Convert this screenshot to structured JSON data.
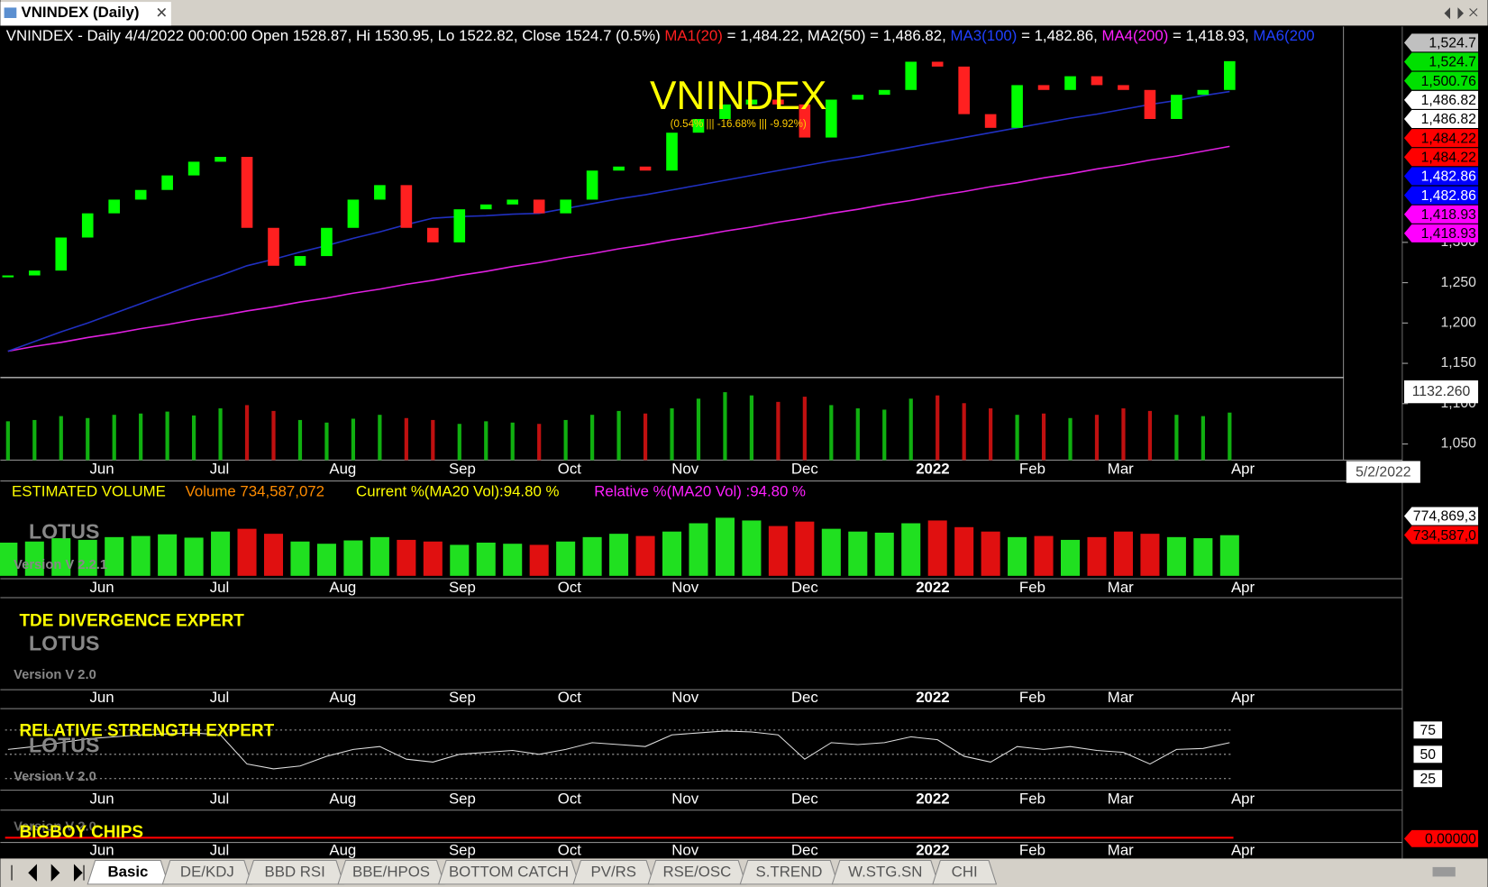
{
  "window": {
    "tab_title": "VNINDEX (Daily)"
  },
  "header": {
    "segments": [
      {
        "text": "VNINDEX - Daily 4/4/2022 00:00:00 Open 1528.87, Hi 1530.95, Lo 1522.82, Close 1524.7 (0.5%) ",
        "color": "#ffffff"
      },
      {
        "text": "MA1(20)",
        "color": "#ff2020"
      },
      {
        "text": " = 1,484.22, MA2(50) = 1,486.82, ",
        "color": "#ffffff"
      },
      {
        "text": "MA3(100)",
        "color": "#2040ff"
      },
      {
        "text": " = 1,482.86, ",
        "color": "#ffffff"
      },
      {
        "text": "MA4(200)",
        "color": "#ff20ff"
      },
      {
        "text": " = 1,418.93, ",
        "color": "#ffffff"
      },
      {
        "text": "MA6(200",
        "color": "#2040ff"
      }
    ]
  },
  "watermark": {
    "title": "VNINDEX",
    "subtitle": "(0.54% ||| -16.68% ||| -9.92%)"
  },
  "price_panel": {
    "ylim": [
      1030,
      1567.6
    ],
    "yticks": [
      {
        "value": 1050,
        "label": "1,050"
      },
      {
        "value": 1100,
        "label": "1,100"
      },
      {
        "value": 1150,
        "label": "1,150"
      },
      {
        "value": 1200,
        "label": "1,200"
      },
      {
        "value": 1250,
        "label": "1,250"
      },
      {
        "value": 1300,
        "label": "1,300"
      }
    ],
    "closes": [
      1259,
      1265,
      1306,
      1336,
      1353,
      1365,
      1383,
      1400,
      1406,
      1318,
      1271,
      1283,
      1318,
      1353,
      1371,
      1318,
      1300,
      1341,
      1347,
      1353,
      1336,
      1353,
      1389,
      1394,
      1389,
      1436,
      1453,
      1471,
      1477,
      1471,
      1430,
      1477,
      1483,
      1489,
      1524,
      1518,
      1459,
      1442,
      1495,
      1489,
      1506,
      1495,
      1489,
      1453,
      1483,
      1489,
      1524.7
    ],
    "ma100": {
      "color": "#2030c0",
      "values": [
        1165,
        1177,
        1189,
        1200,
        1212,
        1224,
        1236,
        1248,
        1259,
        1271,
        1279,
        1288,
        1296,
        1305,
        1313,
        1322,
        1330,
        1332,
        1333,
        1335,
        1336,
        1342,
        1348,
        1354,
        1359,
        1365,
        1371,
        1377,
        1383,
        1389,
        1395,
        1401,
        1406,
        1412,
        1418,
        1424,
        1430,
        1436,
        1442,
        1448,
        1454,
        1459,
        1465,
        1471,
        1476,
        1482,
        1487
      ]
    },
    "ma200": {
      "color": "#e020e0",
      "values": [
        1165,
        1171,
        1176,
        1182,
        1187,
        1193,
        1198,
        1204,
        1209,
        1215,
        1220,
        1226,
        1231,
        1237,
        1242,
        1248,
        1253,
        1259,
        1264,
        1270,
        1275,
        1281,
        1286,
        1292,
        1297,
        1303,
        1308,
        1314,
        1319,
        1325,
        1330,
        1336,
        1341,
        1347,
        1352,
        1358,
        1363,
        1369,
        1374,
        1380,
        1385,
        1391,
        1396,
        1402,
        1407,
        1413,
        1419
      ]
    },
    "price_tags": [
      {
        "text": "1,524.7",
        "bg": "#c0c0c0",
        "fg": "#000000"
      },
      {
        "text": "1,524.7",
        "bg": "#00e000",
        "fg": "#000000"
      },
      {
        "text": "1,500.76",
        "bg": "#00e000",
        "fg": "#000000"
      },
      {
        "text": "1,486.82",
        "bg": "#ffffff",
        "fg": "#000000"
      },
      {
        "text": "1,486.82",
        "bg": "#ffffff",
        "fg": "#000000"
      },
      {
        "text": "1,484.22",
        "bg": "#ff0000",
        "fg": "#000000"
      },
      {
        "text": "1,484.22",
        "bg": "#ff0000",
        "fg": "#000000"
      },
      {
        "text": "1,482.86",
        "bg": "#0000ff",
        "fg": "#ffffff"
      },
      {
        "text": "1,482.86",
        "bg": "#0000ff",
        "fg": "#ffffff"
      },
      {
        "text": "1,418.93",
        "bg": "#ff00ff",
        "fg": "#000000"
      },
      {
        "text": "1,418.93",
        "bg": "#ff00ff",
        "fg": "#000000"
      }
    ],
    "bottom_value": "1132.260",
    "cursor_date": "5/2/2022"
  },
  "months": [
    "Jun",
    "Jul",
    "Aug",
    "Sep",
    "Oct",
    "Nov",
    "Dec",
    "2022",
    "Feb",
    "Mar",
    "Apr"
  ],
  "volume_panel": {
    "title": "ESTIMATED VOLUME",
    "volume": "Volume 734,587,072",
    "current": "Current %(MA20 Vol):94.80 %",
    "relative": "Relative %(MA20 Vol) :94.80 %",
    "brand": "LOTUS",
    "version": "Version V 2.2.1",
    "tags": [
      "774,869,3",
      "734,587,0"
    ],
    "ylim": [
      0,
      1320000000
    ],
    "values": [
      600000000,
      620000000,
      680000000,
      650000000,
      700000000,
      720000000,
      750000000,
      690000000,
      800000000,
      850000000,
      760000000,
      620000000,
      580000000,
      640000000,
      700000000,
      650000000,
      620000000,
      560000000,
      600000000,
      580000000,
      560000000,
      620000000,
      700000000,
      760000000,
      720000000,
      800000000,
      950000000,
      1050000000,
      1000000000,
      900000000,
      980000000,
      850000000,
      800000000,
      780000000,
      950000000,
      1000000000,
      880000000,
      800000000,
      700000000,
      720000000,
      650000000,
      700000000,
      800000000,
      760000000,
      700000000,
      680000000,
      734587072
    ]
  },
  "tde_panel": {
    "title": "TDE DIVERGENCE EXPERT",
    "brand": "LOTUS",
    "version": "Version V 2.0"
  },
  "rsi_panel": {
    "title": "RELATIVE STRENGTH EXPERT",
    "brand": "LOTUS",
    "version": "Version V 2.0",
    "ylim": [
      13,
      97
    ],
    "yticks": [
      75,
      50,
      25
    ],
    "values": [
      55,
      58,
      62,
      66,
      68,
      70,
      71,
      72,
      70,
      40,
      35,
      38,
      48,
      55,
      58,
      45,
      42,
      50,
      52,
      54,
      50,
      55,
      62,
      60,
      58,
      70,
      72,
      74,
      73,
      70,
      45,
      62,
      60,
      62,
      68,
      65,
      48,
      42,
      58,
      55,
      58,
      54,
      52,
      40,
      55,
      56,
      62
    ]
  },
  "bigboy_panel": {
    "title": "BIGBOY CHIPS",
    "version": "Version V 2.0",
    "tag": "0.00000"
  },
  "tabs": [
    "Basic",
    "DE/KDJ",
    "BBD RSI",
    "BBE/HPOS",
    "BOTTOM CATCH",
    "PV/RS",
    "RSE/OSC",
    "S.TREND",
    "W.STG.SN",
    "CHI"
  ]
}
